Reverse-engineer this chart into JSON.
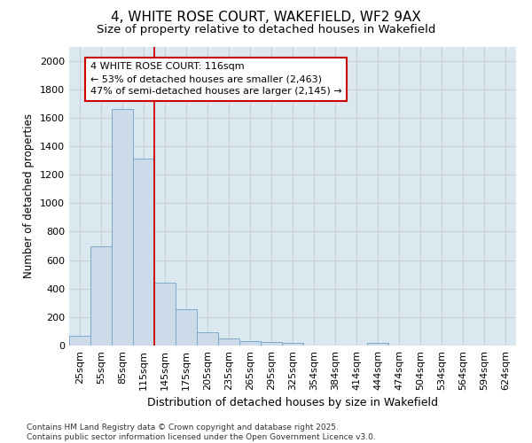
{
  "title": "4, WHITE ROSE COURT, WAKEFIELD, WF2 9AX",
  "subtitle": "Size of property relative to detached houses in Wakefield",
  "xlabel": "Distribution of detached houses by size in Wakefield",
  "ylabel": "Number of detached properties",
  "categories": [
    "25sqm",
    "55sqm",
    "85sqm",
    "115sqm",
    "145sqm",
    "175sqm",
    "205sqm",
    "235sqm",
    "265sqm",
    "295sqm",
    "325sqm",
    "354sqm",
    "384sqm",
    "414sqm",
    "444sqm",
    "474sqm",
    "504sqm",
    "534sqm",
    "564sqm",
    "594sqm",
    "624sqm"
  ],
  "values": [
    70,
    700,
    1660,
    1310,
    440,
    255,
    95,
    50,
    30,
    25,
    20,
    0,
    0,
    0,
    20,
    0,
    0,
    0,
    0,
    0,
    0
  ],
  "bar_color": "#ccdaea",
  "bar_edge_color": "#7aaacb",
  "bar_edge_width": 0.7,
  "red_line_index": 3.5,
  "red_line_color": "#cc0000",
  "annotation_text": "4 WHITE ROSE COURT: 116sqm\n← 53% of detached houses are smaller (2,463)\n47% of semi-detached houses are larger (2,145) →",
  "annotation_box_color": "white",
  "annotation_box_edge_color": "#cc0000",
  "ylim": [
    0,
    2100
  ],
  "yticks": [
    0,
    200,
    400,
    600,
    800,
    1000,
    1200,
    1400,
    1600,
    1800,
    2000
  ],
  "grid_color": "#c8d0dc",
  "plot_bg_color": "#dce8f0",
  "fig_bg_color": "#ffffff",
  "footer_text": "Contains HM Land Registry data © Crown copyright and database right 2025.\nContains public sector information licensed under the Open Government Licence v3.0.",
  "title_fontsize": 11,
  "subtitle_fontsize": 9.5,
  "xlabel_fontsize": 9,
  "ylabel_fontsize": 8.5,
  "tick_fontsize": 8,
  "annotation_fontsize": 8,
  "footer_fontsize": 6.5
}
